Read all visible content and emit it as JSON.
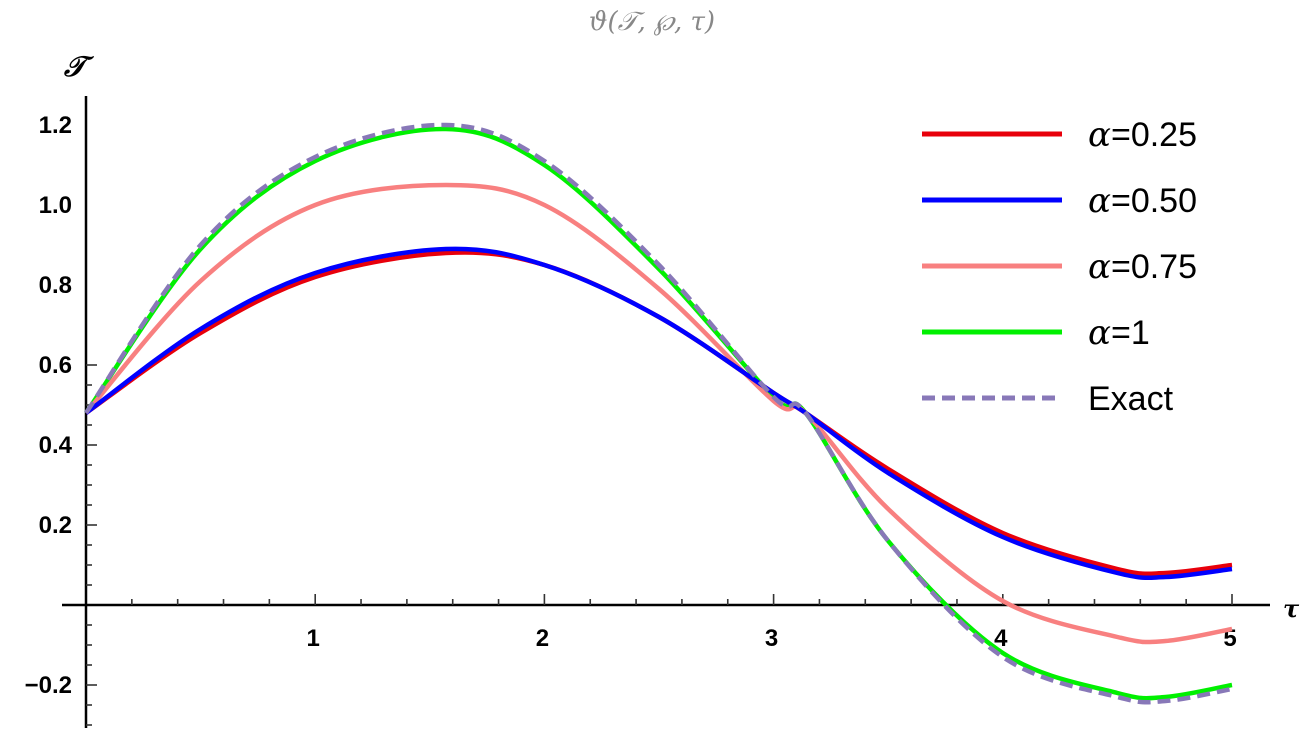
{
  "chart_data": {
    "type": "line",
    "title": "ϑ(𝒯, ℘, τ)",
    "xlabel": "τ",
    "ylabel": "𝒯",
    "xlim": [
      0,
      5
    ],
    "ylim": [
      -0.3,
      1.25
    ],
    "x_ticks": [
      {
        "value": 1,
        "label": "1"
      },
      {
        "value": 2,
        "label": "2"
      },
      {
        "value": 3,
        "label": "3"
      },
      {
        "value": 4,
        "label": "4"
      },
      {
        "value": 5,
        "label": "5"
      }
    ],
    "y_ticks": [
      {
        "value": -0.2,
        "label": "−0.2"
      },
      {
        "value": 0.2,
        "label": "0.2"
      },
      {
        "value": 0.4,
        "label": "0.4"
      },
      {
        "value": 0.6,
        "label": "0.6"
      },
      {
        "value": 0.8,
        "label": "0.8"
      },
      {
        "value": 1.0,
        "label": "1.0"
      },
      {
        "value": 1.2,
        "label": "1.2"
      }
    ],
    "grid": false,
    "legend_position": "top-right",
    "x": [
      0,
      0.5,
      1.0,
      1.57,
      2.0,
      2.5,
      3.0,
      3.14,
      3.5,
      4.0,
      4.5,
      4.71,
      5.0
    ],
    "series": [
      {
        "name": "α=0.25",
        "color": "#e8000b",
        "dashed": false,
        "values": [
          0.48,
          0.68,
          0.82,
          0.88,
          0.85,
          0.72,
          0.53,
          0.48,
          0.34,
          0.18,
          0.09,
          0.08,
          0.1
        ]
      },
      {
        "name": "α=0.50",
        "color": "#0000ff",
        "dashed": false,
        "values": [
          0.48,
          0.69,
          0.83,
          0.89,
          0.85,
          0.72,
          0.53,
          0.48,
          0.33,
          0.17,
          0.08,
          0.07,
          0.09
        ]
      },
      {
        "name": "α=0.75",
        "color": "#f88080",
        "dashed": false,
        "values": [
          0.48,
          0.81,
          1.0,
          1.05,
          1.0,
          0.79,
          0.51,
          0.48,
          0.24,
          0.01,
          -0.08,
          -0.09,
          -0.06
        ]
      },
      {
        "name": "α=1",
        "color": "#00f000",
        "dashed": false,
        "values": [
          0.48,
          0.89,
          1.11,
          1.19,
          1.1,
          0.84,
          0.52,
          0.48,
          0.16,
          -0.12,
          -0.22,
          -0.23,
          -0.2
        ]
      },
      {
        "name": "Exact",
        "color": "#8878b8",
        "dashed": true,
        "values": [
          0.48,
          0.9,
          1.12,
          1.2,
          1.11,
          0.85,
          0.52,
          0.48,
          0.16,
          -0.13,
          -0.23,
          -0.24,
          -0.21
        ]
      }
    ]
  }
}
